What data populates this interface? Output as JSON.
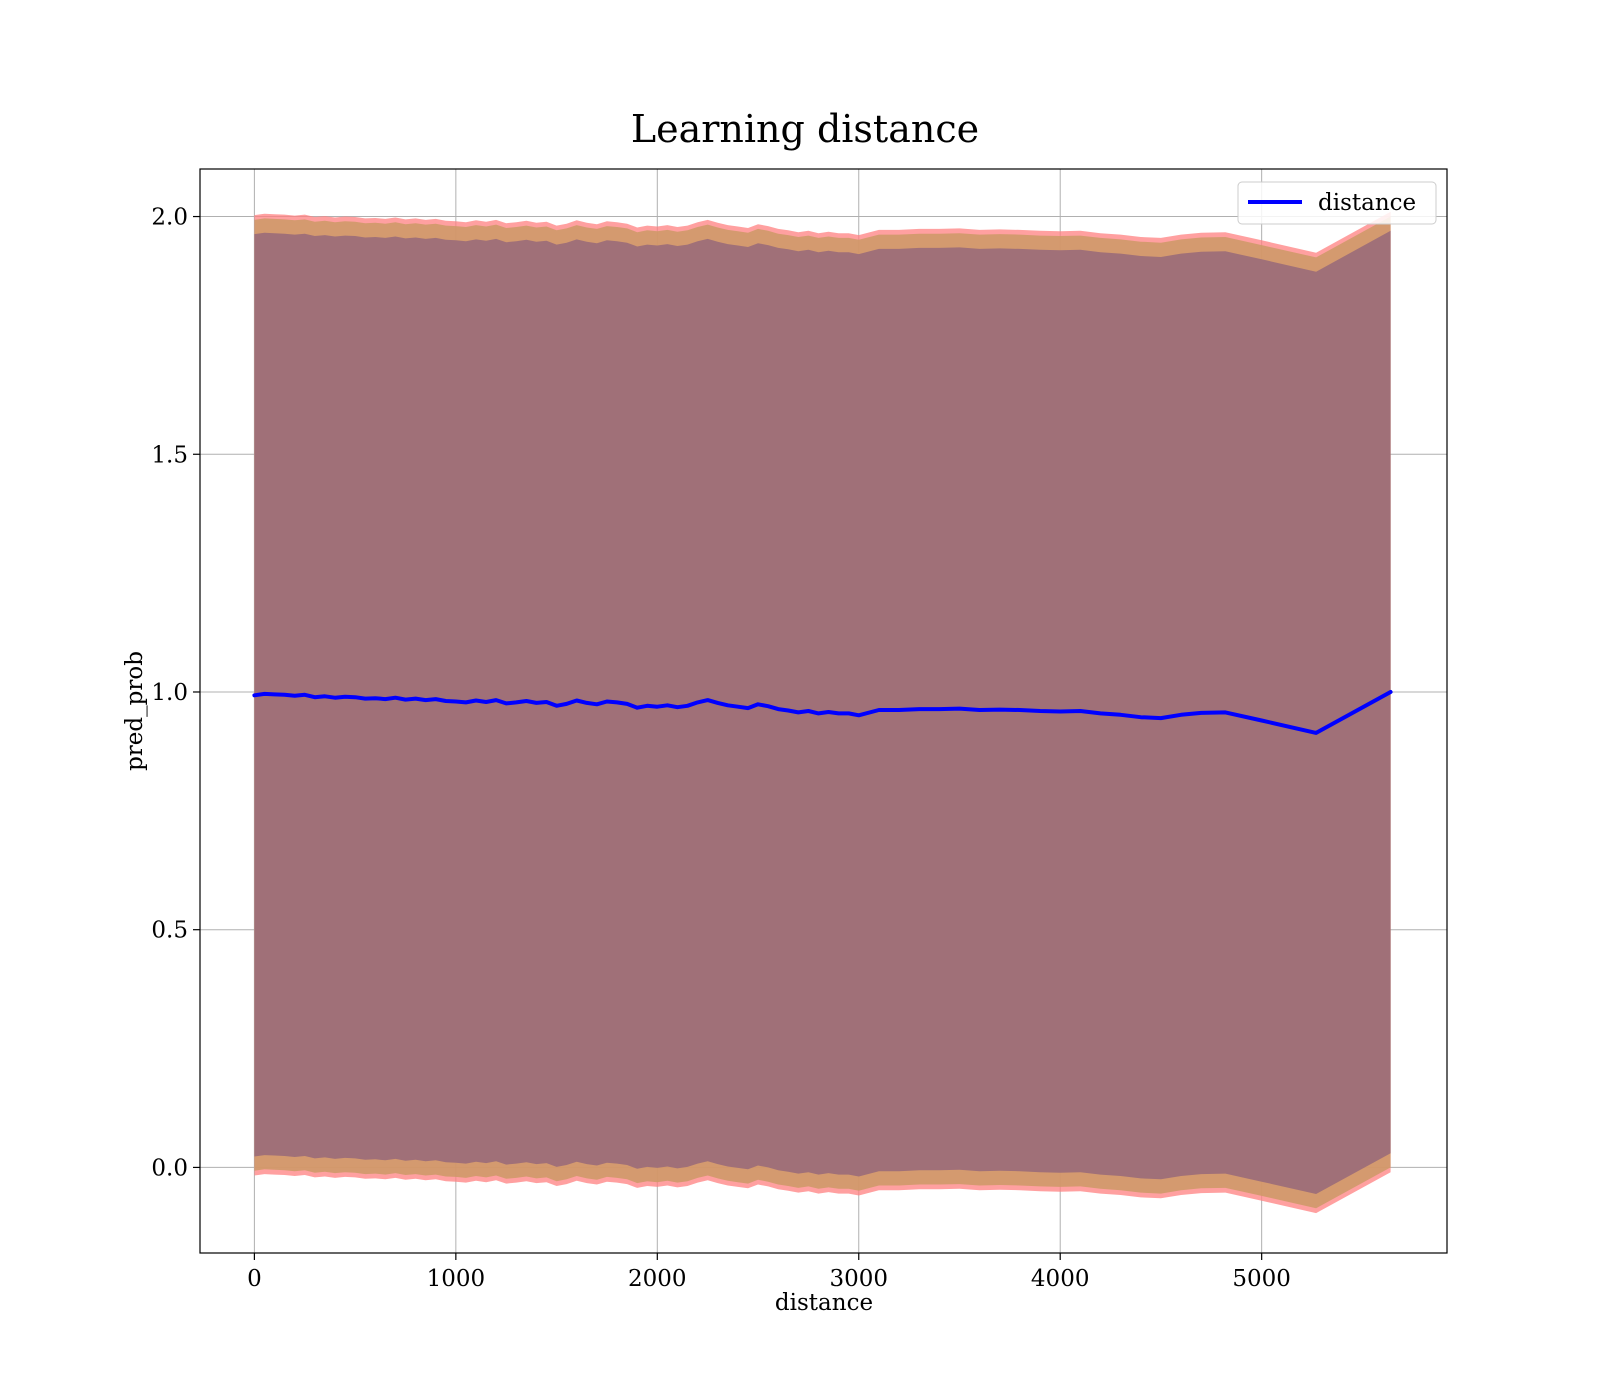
{
  "chart_data": {
    "type": "line",
    "title": "Learning distance",
    "xlabel": "distance",
    "ylabel": "pred_prob",
    "xlim": [
      -270,
      5920
    ],
    "ylim": [
      -0.18,
      2.1
    ],
    "x_ticks": [
      0,
      1000,
      2000,
      3000,
      4000,
      5000
    ],
    "x_tick_labels": [
      "0",
      "1000",
      "2000",
      "3000",
      "4000",
      "5000"
    ],
    "y_ticks": [
      0.0,
      0.5,
      1.0,
      1.5,
      2.0
    ],
    "y_tick_labels": [
      "0.0",
      "0.5",
      "1.0",
      "1.5",
      "2.0"
    ],
    "grid": true,
    "legend": {
      "position": "top-right",
      "entries": [
        "distance"
      ]
    },
    "colors": {
      "line": "#0000ff",
      "band_outer": "#ff8080",
      "band_mid": "#cc9966",
      "band_inner": "#a07078"
    },
    "series": [
      {
        "name": "distance",
        "x": [
          0,
          50,
          100,
          150,
          200,
          250,
          300,
          350,
          400,
          450,
          500,
          550,
          600,
          650,
          700,
          750,
          800,
          850,
          900,
          950,
          1000,
          1050,
          1100,
          1150,
          1200,
          1250,
          1300,
          1350,
          1400,
          1450,
          1500,
          1550,
          1600,
          1650,
          1700,
          1750,
          1800,
          1850,
          1900,
          1950,
          2000,
          2050,
          2100,
          2150,
          2200,
          2250,
          2300,
          2350,
          2400,
          2450,
          2500,
          2550,
          2600,
          2650,
          2700,
          2750,
          2800,
          2850,
          2900,
          2950,
          3000,
          3100,
          3200,
          3300,
          3400,
          3500,
          3600,
          3700,
          3800,
          3900,
          4000,
          4100,
          4200,
          4300,
          4400,
          4500,
          4600,
          4700,
          4820,
          5000,
          5270,
          5640
        ],
        "values": [
          0.993,
          0.996,
          0.995,
          0.994,
          0.992,
          0.994,
          0.989,
          0.991,
          0.988,
          0.99,
          0.989,
          0.986,
          0.987,
          0.985,
          0.988,
          0.984,
          0.986,
          0.983,
          0.985,
          0.981,
          0.98,
          0.978,
          0.982,
          0.979,
          0.983,
          0.976,
          0.978,
          0.981,
          0.977,
          0.979,
          0.971,
          0.975,
          0.982,
          0.977,
          0.974,
          0.98,
          0.978,
          0.975,
          0.967,
          0.971,
          0.969,
          0.972,
          0.968,
          0.971,
          0.978,
          0.983,
          0.977,
          0.972,
          0.969,
          0.966,
          0.974,
          0.97,
          0.964,
          0.961,
          0.957,
          0.96,
          0.955,
          0.958,
          0.955,
          0.955,
          0.951,
          0.962,
          0.962,
          0.964,
          0.964,
          0.965,
          0.962,
          0.963,
          0.962,
          0.96,
          0.959,
          0.96,
          0.955,
          0.952,
          0.947,
          0.945,
          0.952,
          0.956,
          0.957,
          0.94,
          0.914,
          1.0
        ]
      }
    ]
  }
}
